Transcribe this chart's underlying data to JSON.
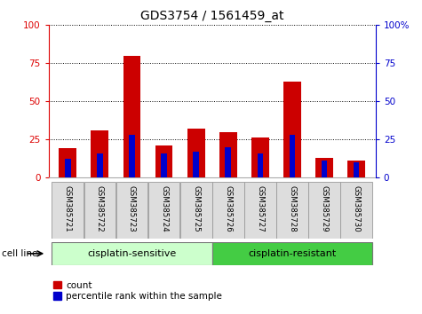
{
  "title": "GDS3754 / 1561459_at",
  "samples": [
    "GSM385721",
    "GSM385722",
    "GSM385723",
    "GSM385724",
    "GSM385725",
    "GSM385726",
    "GSM385727",
    "GSM385728",
    "GSM385729",
    "GSM385730"
  ],
  "count_values": [
    19,
    31,
    80,
    21,
    32,
    30,
    26,
    63,
    13,
    11
  ],
  "percentile_values": [
    12,
    16,
    28,
    16,
    17,
    20,
    16,
    28,
    11,
    10
  ],
  "groups": [
    {
      "label": "cisplatin-sensitive",
      "start": 0,
      "end": 5,
      "color": "#ccffcc"
    },
    {
      "label": "cisplatin-resistant",
      "start": 5,
      "end": 10,
      "color": "#44cc44"
    }
  ],
  "ylim": [
    0,
    100
  ],
  "yticks": [
    0,
    25,
    50,
    75,
    100
  ],
  "left_axis_color": "#dd0000",
  "right_axis_color": "#0000cc",
  "bar_color_red": "#cc0000",
  "bar_color_blue": "#0000cc",
  "bar_width": 0.55,
  "blue_bar_width": 0.18,
  "background_color": "#ffffff",
  "title_fontsize": 10
}
